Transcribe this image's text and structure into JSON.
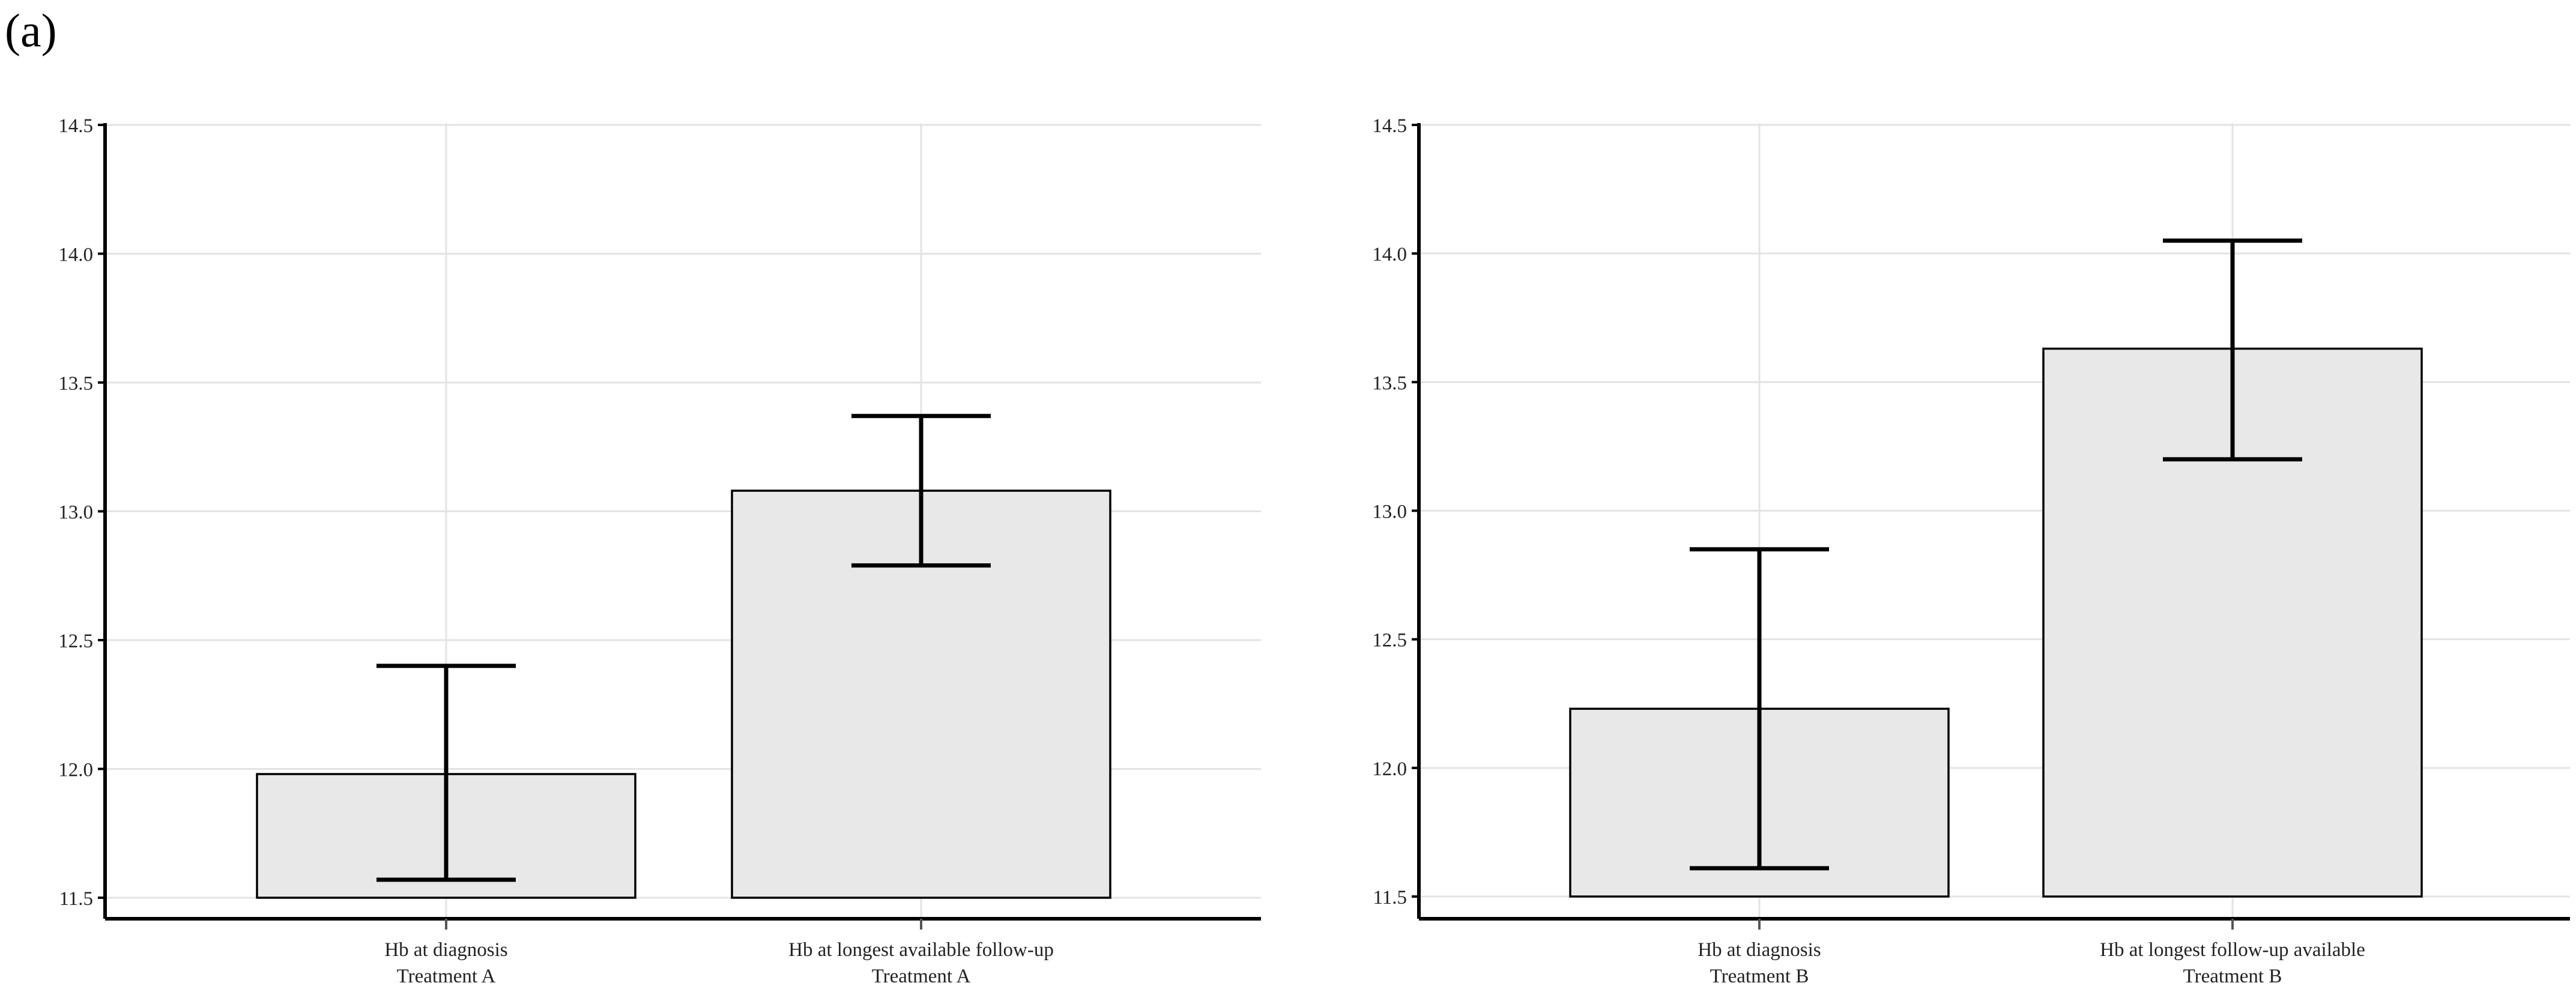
{
  "panel_label": "(a)",
  "chart_data": [
    {
      "type": "bar",
      "categories": [
        [
          "Hb at diagnosis",
          "Treatment A"
        ],
        [
          "Hb at longest available follow-up",
          "Treatment A"
        ]
      ],
      "values": [
        11.98,
        13.08
      ],
      "error_low": [
        11.57,
        12.79
      ],
      "error_high": [
        12.4,
        13.37
      ],
      "ylim": [
        11.5,
        14.5
      ],
      "yticks": [
        "11.5",
        "12.0",
        "12.5",
        "13.0",
        "13.5",
        "14.0",
        "14.5"
      ],
      "grid": true,
      "colors": {
        "bar_fill": "#e8e8e8",
        "bar_stroke": "#000000",
        "error_bar": "#000000",
        "grid": "#e3e3e3"
      }
    },
    {
      "type": "bar",
      "categories": [
        [
          "Hb at diagnosis",
          "Treatment B"
        ],
        [
          "Hb at longest follow-up available",
          "Treatment B"
        ]
      ],
      "values": [
        12.23,
        13.63
      ],
      "error_low": [
        11.61,
        13.2
      ],
      "error_high": [
        12.85,
        14.05
      ],
      "ylim": [
        11.5,
        14.5
      ],
      "yticks": [
        "11.5",
        "12.0",
        "12.5",
        "13.0",
        "13.5",
        "14.0",
        "14.5"
      ],
      "grid": true,
      "colors": {
        "bar_fill": "#e8e8e8",
        "bar_stroke": "#000000",
        "error_bar": "#000000",
        "grid": "#e3e3e3"
      }
    }
  ]
}
